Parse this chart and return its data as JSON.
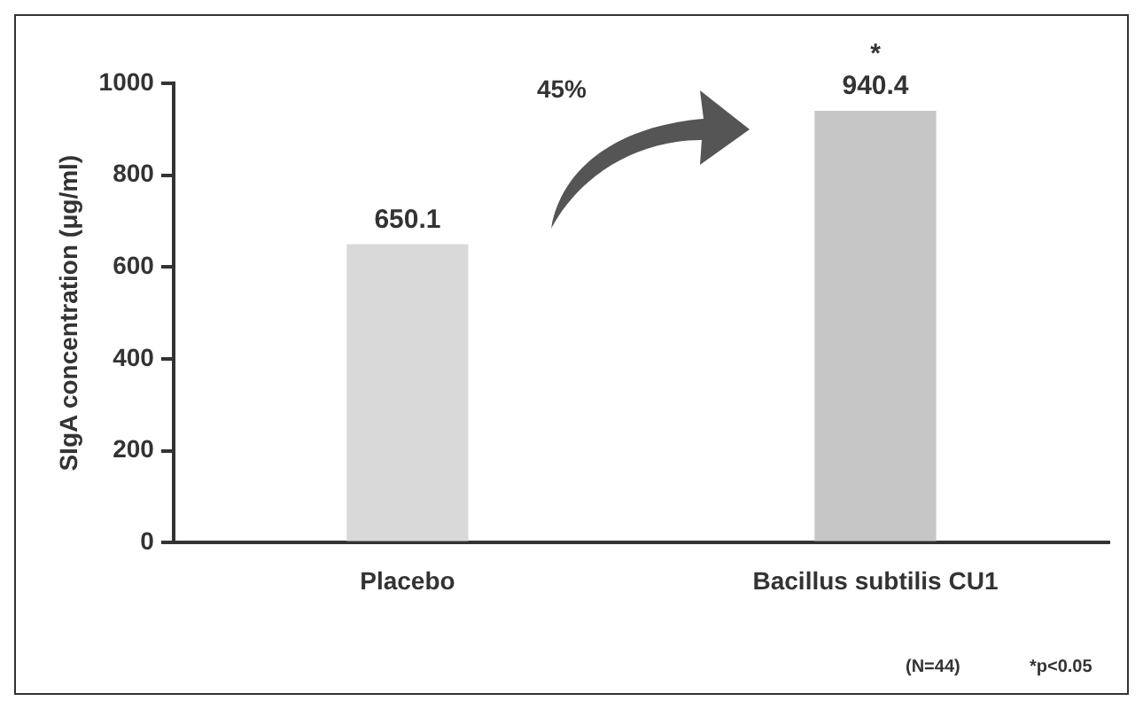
{
  "chart_data": {
    "type": "bar",
    "ylabel": "SIgA concentration (μg/ml)",
    "categories": [
      "Placebo",
      "Bacillus subtilis CU1"
    ],
    "values": [
      650.1,
      940.4
    ],
    "colors": [
      "#d9d9d9",
      "#c6c6c6"
    ],
    "ylim": [
      0,
      1000
    ],
    "yticks": [
      0,
      200,
      400,
      600,
      800,
      1000
    ],
    "grid": false,
    "legend": false,
    "data_labels": true,
    "annotations": [
      "45%",
      "*",
      "(N=44)",
      "*p<0.05"
    ]
  }
}
